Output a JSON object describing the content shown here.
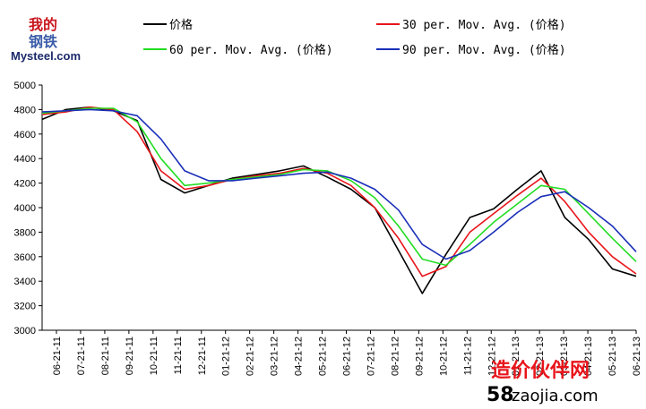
{
  "logo": {
    "chinese_top": "我的",
    "chinese_bottom": "钢铁",
    "brand": "Mysteel.com"
  },
  "watermark": {
    "line1": "造价伙伴网",
    "line2_prefix": "58",
    "line2_suffix": "zaojia.com",
    "color": "#e8151b"
  },
  "chart_data": {
    "type": "line",
    "title": "",
    "xlabel": "",
    "ylabel": "",
    "ylim": [
      3000,
      5000
    ],
    "y_ticks": [
      3000,
      3200,
      3400,
      3600,
      3800,
      4000,
      4200,
      4400,
      4600,
      4800,
      5000
    ],
    "x_tick_labels": [
      "06-21-11",
      "07-21-11",
      "08-21-11",
      "09-21-11",
      "10-21-11",
      "11-21-11",
      "12-21-11",
      "01-21-12",
      "02-21-12",
      "03-21-12",
      "04-21-12",
      "05-21-12",
      "06-21-12",
      "07-21-12",
      "08-21-12",
      "09-21-12",
      "10-21-12",
      "11-21-12",
      "12-21-12",
      "01-21-13",
      "02-21-13",
      "03-21-13",
      "04-21-13",
      "05-21-13",
      "06-21-13"
    ],
    "grid": false,
    "legend_placement": "top",
    "series": [
      {
        "name": "价格",
        "color": "#000000",
        "values": [
          4720,
          4800,
          4820,
          4790,
          4710,
          4230,
          4120,
          4180,
          4240,
          4270,
          4300,
          4340,
          4250,
          4150,
          4000,
          3650,
          3300,
          3620,
          3920,
          3990,
          4150,
          4300,
          3920,
          3740,
          3500,
          3440
        ]
      },
      {
        "name": "30 per. Mov. Avg. (价格)",
        "color": "#e8151b",
        "values": [
          4760,
          4780,
          4820,
          4800,
          4620,
          4300,
          4150,
          4180,
          4230,
          4260,
          4280,
          4320,
          4280,
          4180,
          4000,
          3750,
          3440,
          3520,
          3800,
          3950,
          4100,
          4240,
          4050,
          3800,
          3600,
          3460
        ]
      },
      {
        "name": "60 per. Mov. Avg. (价格)",
        "color": "#22dd22",
        "values": [
          4770,
          4790,
          4810,
          4810,
          4700,
          4400,
          4180,
          4200,
          4230,
          4250,
          4270,
          4310,
          4300,
          4220,
          4080,
          3850,
          3580,
          3530,
          3700,
          3880,
          4030,
          4180,
          4150,
          3950,
          3750,
          3560
        ]
      },
      {
        "name": "90 per. Mov. Avg. (价格)",
        "color": "#1a2fb8",
        "values": [
          4780,
          4790,
          4800,
          4790,
          4750,
          4560,
          4300,
          4220,
          4220,
          4240,
          4260,
          4280,
          4290,
          4240,
          4150,
          3980,
          3700,
          3580,
          3650,
          3800,
          3960,
          4090,
          4130,
          4000,
          3850,
          3640
        ]
      }
    ]
  }
}
